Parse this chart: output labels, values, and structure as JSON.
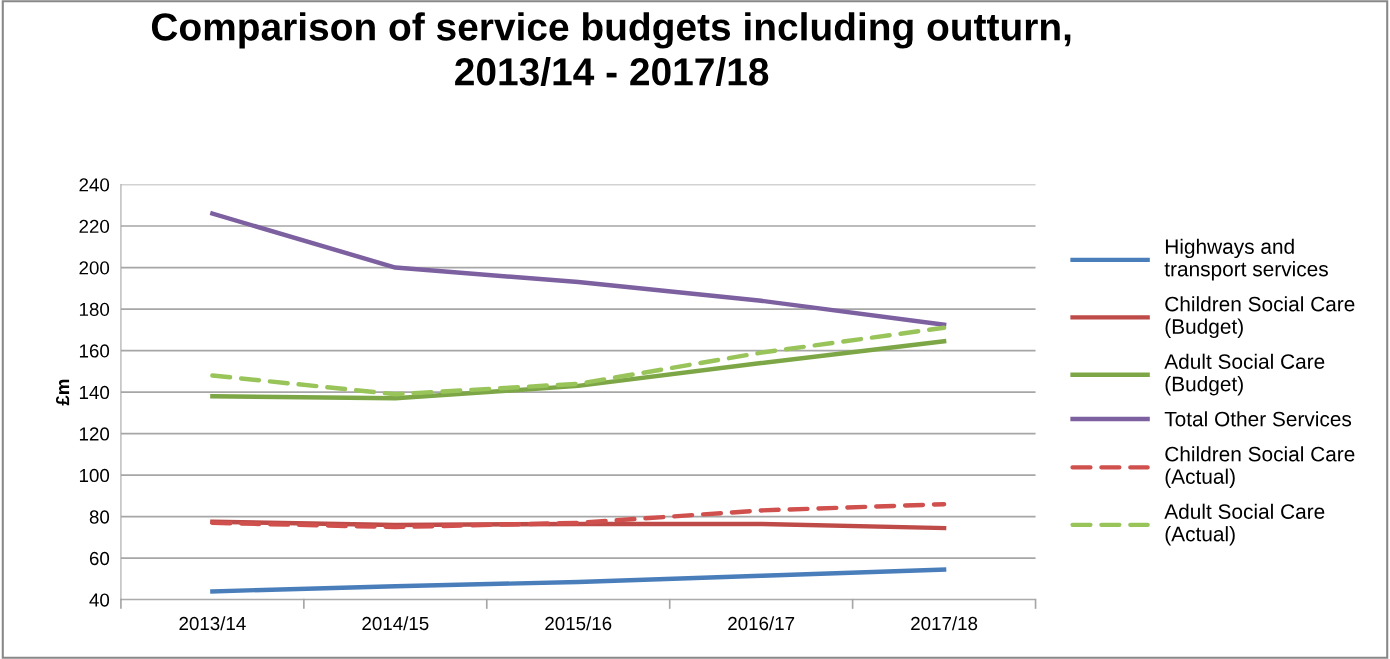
{
  "chart_data": {
    "type": "line",
    "title": "Comparison of service budgets including outturn,\n2013/14 - 2017/18",
    "ylabel": "£m",
    "categories": [
      "2013/14",
      "2014/15",
      "2015/16",
      "2016/17",
      "2017/18"
    ],
    "series": [
      {
        "name": "Highways and\ntransport services",
        "color": "#4a7ebb",
        "values": [
          44,
          46.5,
          48.5,
          51.5,
          54.5
        ]
      },
      {
        "name": "Children Social Care\n(Budget)",
        "color": "#be4b48",
        "values": [
          77.5,
          76,
          76.5,
          76.5,
          74.5
        ]
      },
      {
        "name": "Adult Social Care\n(Budget)",
        "color": "#7da746",
        "values": [
          138,
          137,
          143,
          154,
          164.5
        ]
      },
      {
        "name": "Total Other Services",
        "color": "#7d60a0",
        "values": [
          226,
          200,
          193,
          184,
          172.5
        ]
      },
      {
        "name": "Children Social Care\n(Actual)",
        "color": "#d0504d",
        "values": [
          77,
          75,
          77,
          83,
          86
        ],
        "line_style": "dashed"
      },
      {
        "name": "Adult Social Care\n(Actual)",
        "color": "#98c45a",
        "values": [
          148,
          139,
          144,
          159,
          171
        ],
        "line_style": "dashed"
      }
    ],
    "ylim": [
      40,
      240
    ],
    "yticks": [
      40,
      60,
      80,
      100,
      120,
      140,
      160,
      180,
      200,
      220,
      240
    ],
    "grid": "y",
    "legend": "right",
    "line_style": "solid",
    "marker": "none"
  }
}
